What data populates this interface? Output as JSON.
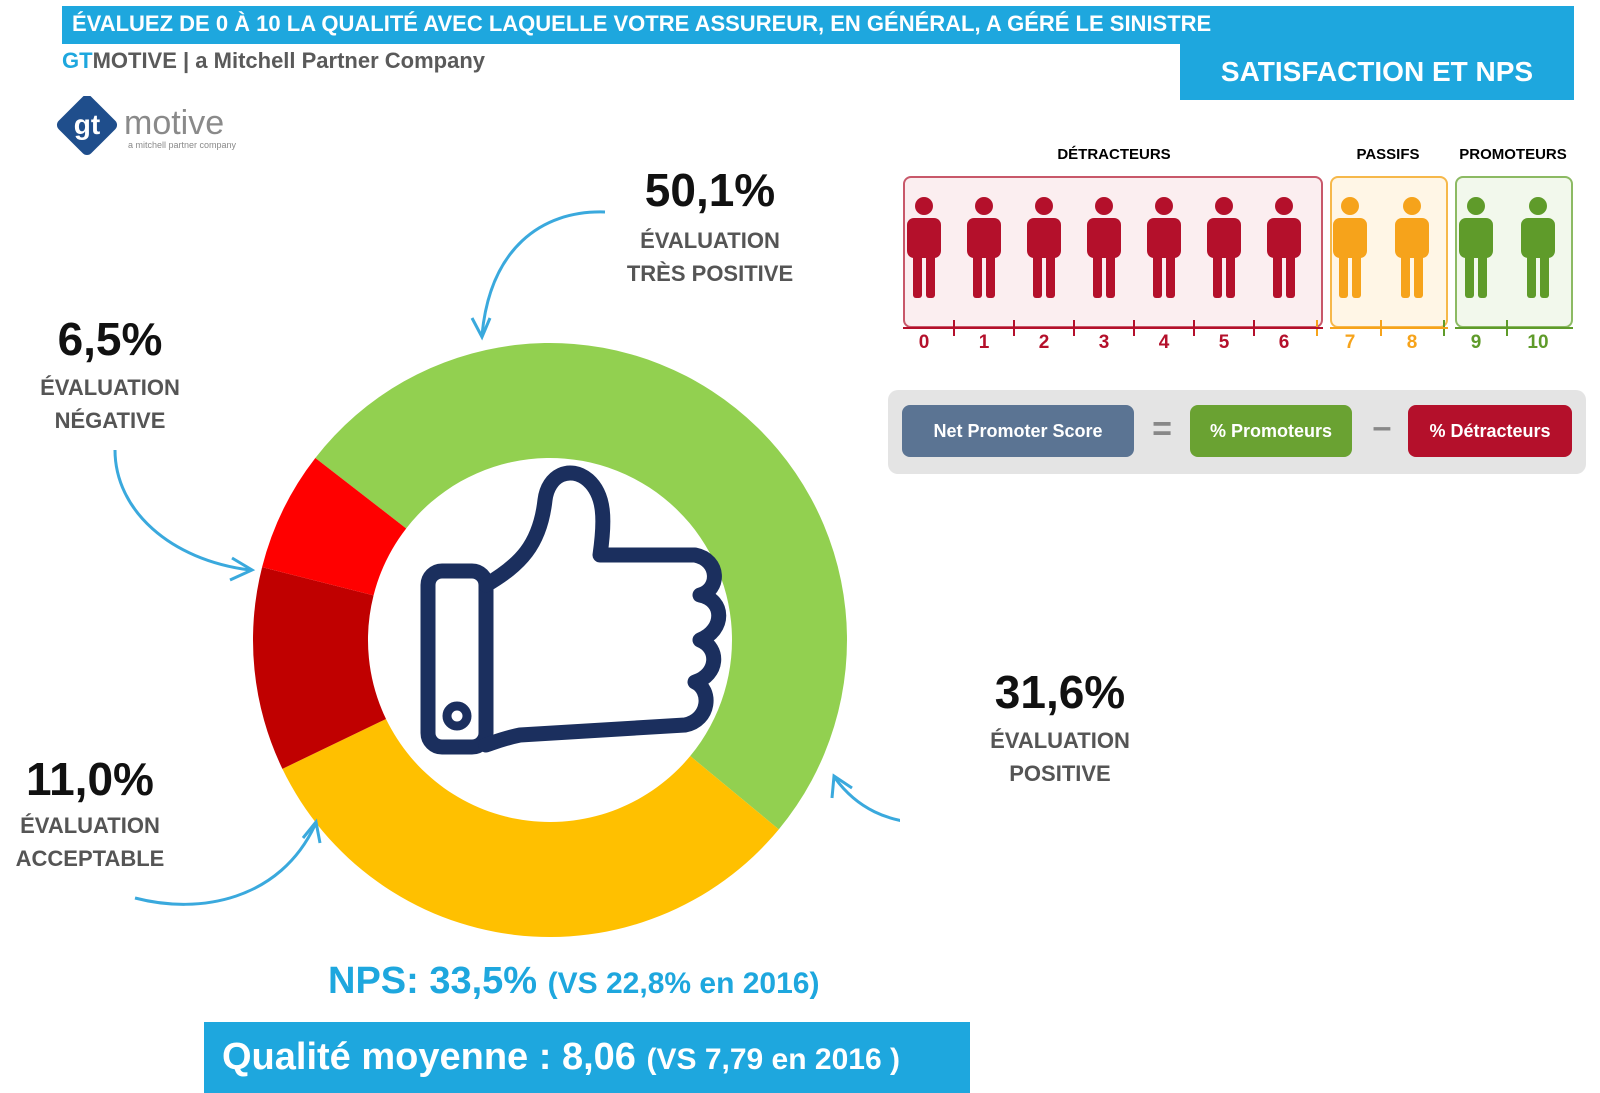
{
  "header": {
    "title": "ÉVALUEZ DE 0 À 10 LA QUALITÉ AVEC LAQUELLE VOTRE ASSUREUR, EN GÉNÉRAL, A GÉRÉ LE SINISTRE",
    "brand_gt": "GT",
    "brand_rest": "MOTIVE | a Mitchell Partner Company",
    "section": "SATISFACTION ET NPS"
  },
  "logo": {
    "text_gt": "gt",
    "text_motive": "motive",
    "tagline": "a mitchell partner company"
  },
  "chart_data": {
    "type": "pie",
    "variant": "donut",
    "slices": [
      {
        "label_lines": [
          "ÉVALUATION",
          "TRÈS POSITIVE"
        ],
        "value": 50.1,
        "display": "50,1%",
        "color": "#92d050"
      },
      {
        "label_lines": [
          "ÉVALUATION",
          "POSITIVE"
        ],
        "value": 31.6,
        "display": "31,6%",
        "color": "#ffc000"
      },
      {
        "label_lines": [
          "ÉVALUATION",
          "ACCEPTABLE"
        ],
        "value": 11.0,
        "display": "11,0%",
        "color": "#c00000"
      },
      {
        "label_lines": [
          "ÉVALUATION",
          "NÉGATIVE"
        ],
        "value": 6.5,
        "display": "6,5%",
        "color": "#ff0000"
      }
    ],
    "center_icon": "thumbs-up-icon"
  },
  "nps_scale": {
    "groups": [
      {
        "name": "DÉTRACTEURS",
        "color": "#b4102b",
        "scores": [
          "0",
          "1",
          "2",
          "3",
          "4",
          "5",
          "6"
        ]
      },
      {
        "name": "PASSIFS",
        "color": "#f6a31b",
        "scores": [
          "7",
          "8"
        ]
      },
      {
        "name": "PROMOTEURS",
        "color": "#5f9b2a",
        "scores": [
          "9",
          "10"
        ]
      }
    ],
    "person_icon": "person-icon"
  },
  "formula": {
    "nps_label": "Net Promoter Score",
    "equals": "=",
    "promoters_label": "% Promoteurs",
    "minus": "–",
    "detractors_label": "% Détracteurs",
    "colors": {
      "nps": "#5b7493",
      "promoters": "#6aa232",
      "detractors": "#b4102b"
    }
  },
  "summary": {
    "nps_main": "NPS: 33,5%",
    "nps_compare": "(VS 22,8% en 2016)",
    "quality_main": "Qualité moyenne : 8,06",
    "quality_compare": "(VS 7,79 en 2016 )"
  }
}
